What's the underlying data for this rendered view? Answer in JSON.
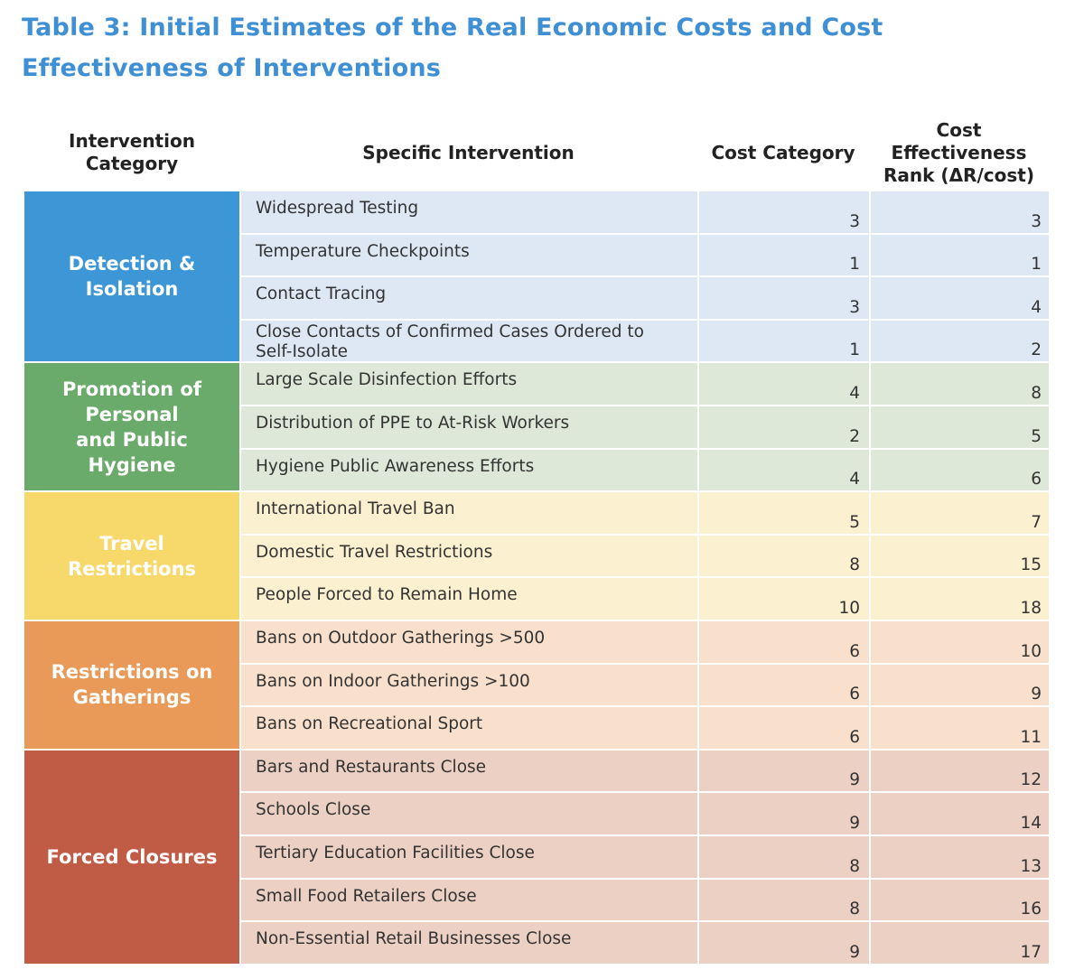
{
  "title": "Table 3: Initial Estimates of the Real Economic Costs and Cost Effectiveness of Interventions",
  "headers": {
    "category": "Intervention\nCategory",
    "specific": "Specific Intervention",
    "cost": "Cost Category",
    "rank": "Cost\nEffectiveness\nRank (ΔR/cost)"
  },
  "groups": [
    {
      "name": "Detection &\nIsolation",
      "color": "#3d97d7",
      "tint": "#dde8f4",
      "rows": [
        {
          "intervention": "Widespread Testing",
          "cost": "3",
          "rank": "3"
        },
        {
          "intervention": "Temperature Checkpoints",
          "cost": "1",
          "rank": "1"
        },
        {
          "intervention": "Contact Tracing",
          "cost": "3",
          "rank": "4"
        },
        {
          "intervention": "Close Contacts of Confirmed Cases Ordered to Self-Isolate",
          "cost": "1",
          "rank": "2"
        }
      ]
    },
    {
      "name": "Promotion of\nPersonal\nand Public\nHygiene",
      "color": "#6aaa6a",
      "tint": "#dde8d8",
      "rows": [
        {
          "intervention": "Large Scale Disinfection Efforts",
          "cost": "4",
          "rank": "8"
        },
        {
          "intervention": "Distribution of PPE to At-Risk Workers",
          "cost": "2",
          "rank": "5"
        },
        {
          "intervention": "Hygiene Public Awareness Efforts",
          "cost": "4",
          "rank": "6"
        }
      ]
    },
    {
      "name": "Travel\nRestrictions",
      "color": "#f7d86a",
      "tint": "#fbf0cf",
      "rows": [
        {
          "intervention": "International Travel Ban",
          "cost": "5",
          "rank": "7"
        },
        {
          "intervention": "Domestic Travel Restrictions",
          "cost": "8",
          "rank": "15"
        },
        {
          "intervention": "People Forced to Remain Home",
          "cost": "10",
          "rank": "18"
        }
      ]
    },
    {
      "name": "Restrictions on\nGatherings",
      "color": "#e99a58",
      "tint": "#f8e0cc",
      "rows": [
        {
          "intervention": "Bans on Outdoor Gatherings >500",
          "cost": "6",
          "rank": "10"
        },
        {
          "intervention": "Bans on Indoor Gatherings >100",
          "cost": "6",
          "rank": "9"
        },
        {
          "intervention": "Bans on Recreational Sport",
          "cost": "6",
          "rank": "11"
        }
      ]
    },
    {
      "name": "Forced Closures",
      "color": "#c05b45",
      "tint": "#ecd0c4",
      "rows": [
        {
          "intervention": "Bars and Restaurants Close",
          "cost": "9",
          "rank": "12"
        },
        {
          "intervention": "Schools Close",
          "cost": "9",
          "rank": "14"
        },
        {
          "intervention": "Tertiary Education Facilities Close",
          "cost": "8",
          "rank": "13"
        },
        {
          "intervention": "Small Food Retailers Close",
          "cost": "8",
          "rank": "16"
        },
        {
          "intervention": "Non-Essential Retail Businesses Close",
          "cost": "9",
          "rank": "17"
        }
      ]
    }
  ]
}
